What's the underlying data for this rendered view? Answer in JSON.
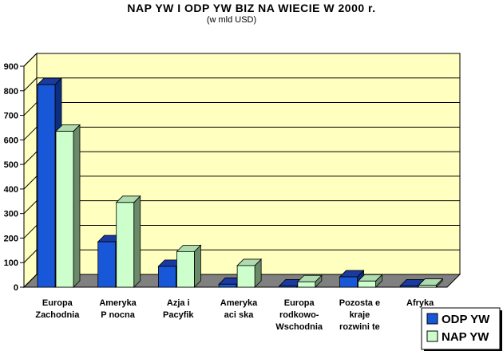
{
  "chart_data": {
    "type": "bar",
    "title": "NAP YW I ODP YW BIZ NA WIECIE W 2000 r.",
    "subtitle": "(w mld USD)",
    "categories": [
      [
        "Europa",
        "Zachodnia"
      ],
      [
        "Ameryka",
        "P nocna"
      ],
      [
        "Azja i",
        "Pacyfik"
      ],
      [
        "Ameryka",
        "aci ska"
      ],
      [
        "Europa",
        "rodkowo-",
        "Wschodnia"
      ],
      [
        "Pozosta e",
        "kraje",
        "rozwini te"
      ],
      [
        "Afryka"
      ]
    ],
    "series": [
      {
        "name": "ODP YW",
        "values": [
          825,
          185,
          85,
          12,
          5,
          42,
          5
        ]
      },
      {
        "name": "NAP YW",
        "values": [
          635,
          345,
          145,
          88,
          22,
          25,
          8
        ]
      }
    ],
    "ylim": [
      0,
      900
    ],
    "yticks": [
      "0",
      "100",
      "200",
      "300",
      "400",
      "500",
      "600",
      "700",
      "800",
      "900"
    ],
    "grid": true,
    "legend_position": "bottom-right",
    "colors": {
      "series1_front": "#1858d8",
      "series1_side": "#0c2e80",
      "series1_top": "#1a3aa0",
      "series2_front": "#ccffcc",
      "series2_side": "#6a8a6a",
      "series2_top": "#aedcae",
      "wall": "#ffffc0",
      "floor": "#808080"
    }
  }
}
